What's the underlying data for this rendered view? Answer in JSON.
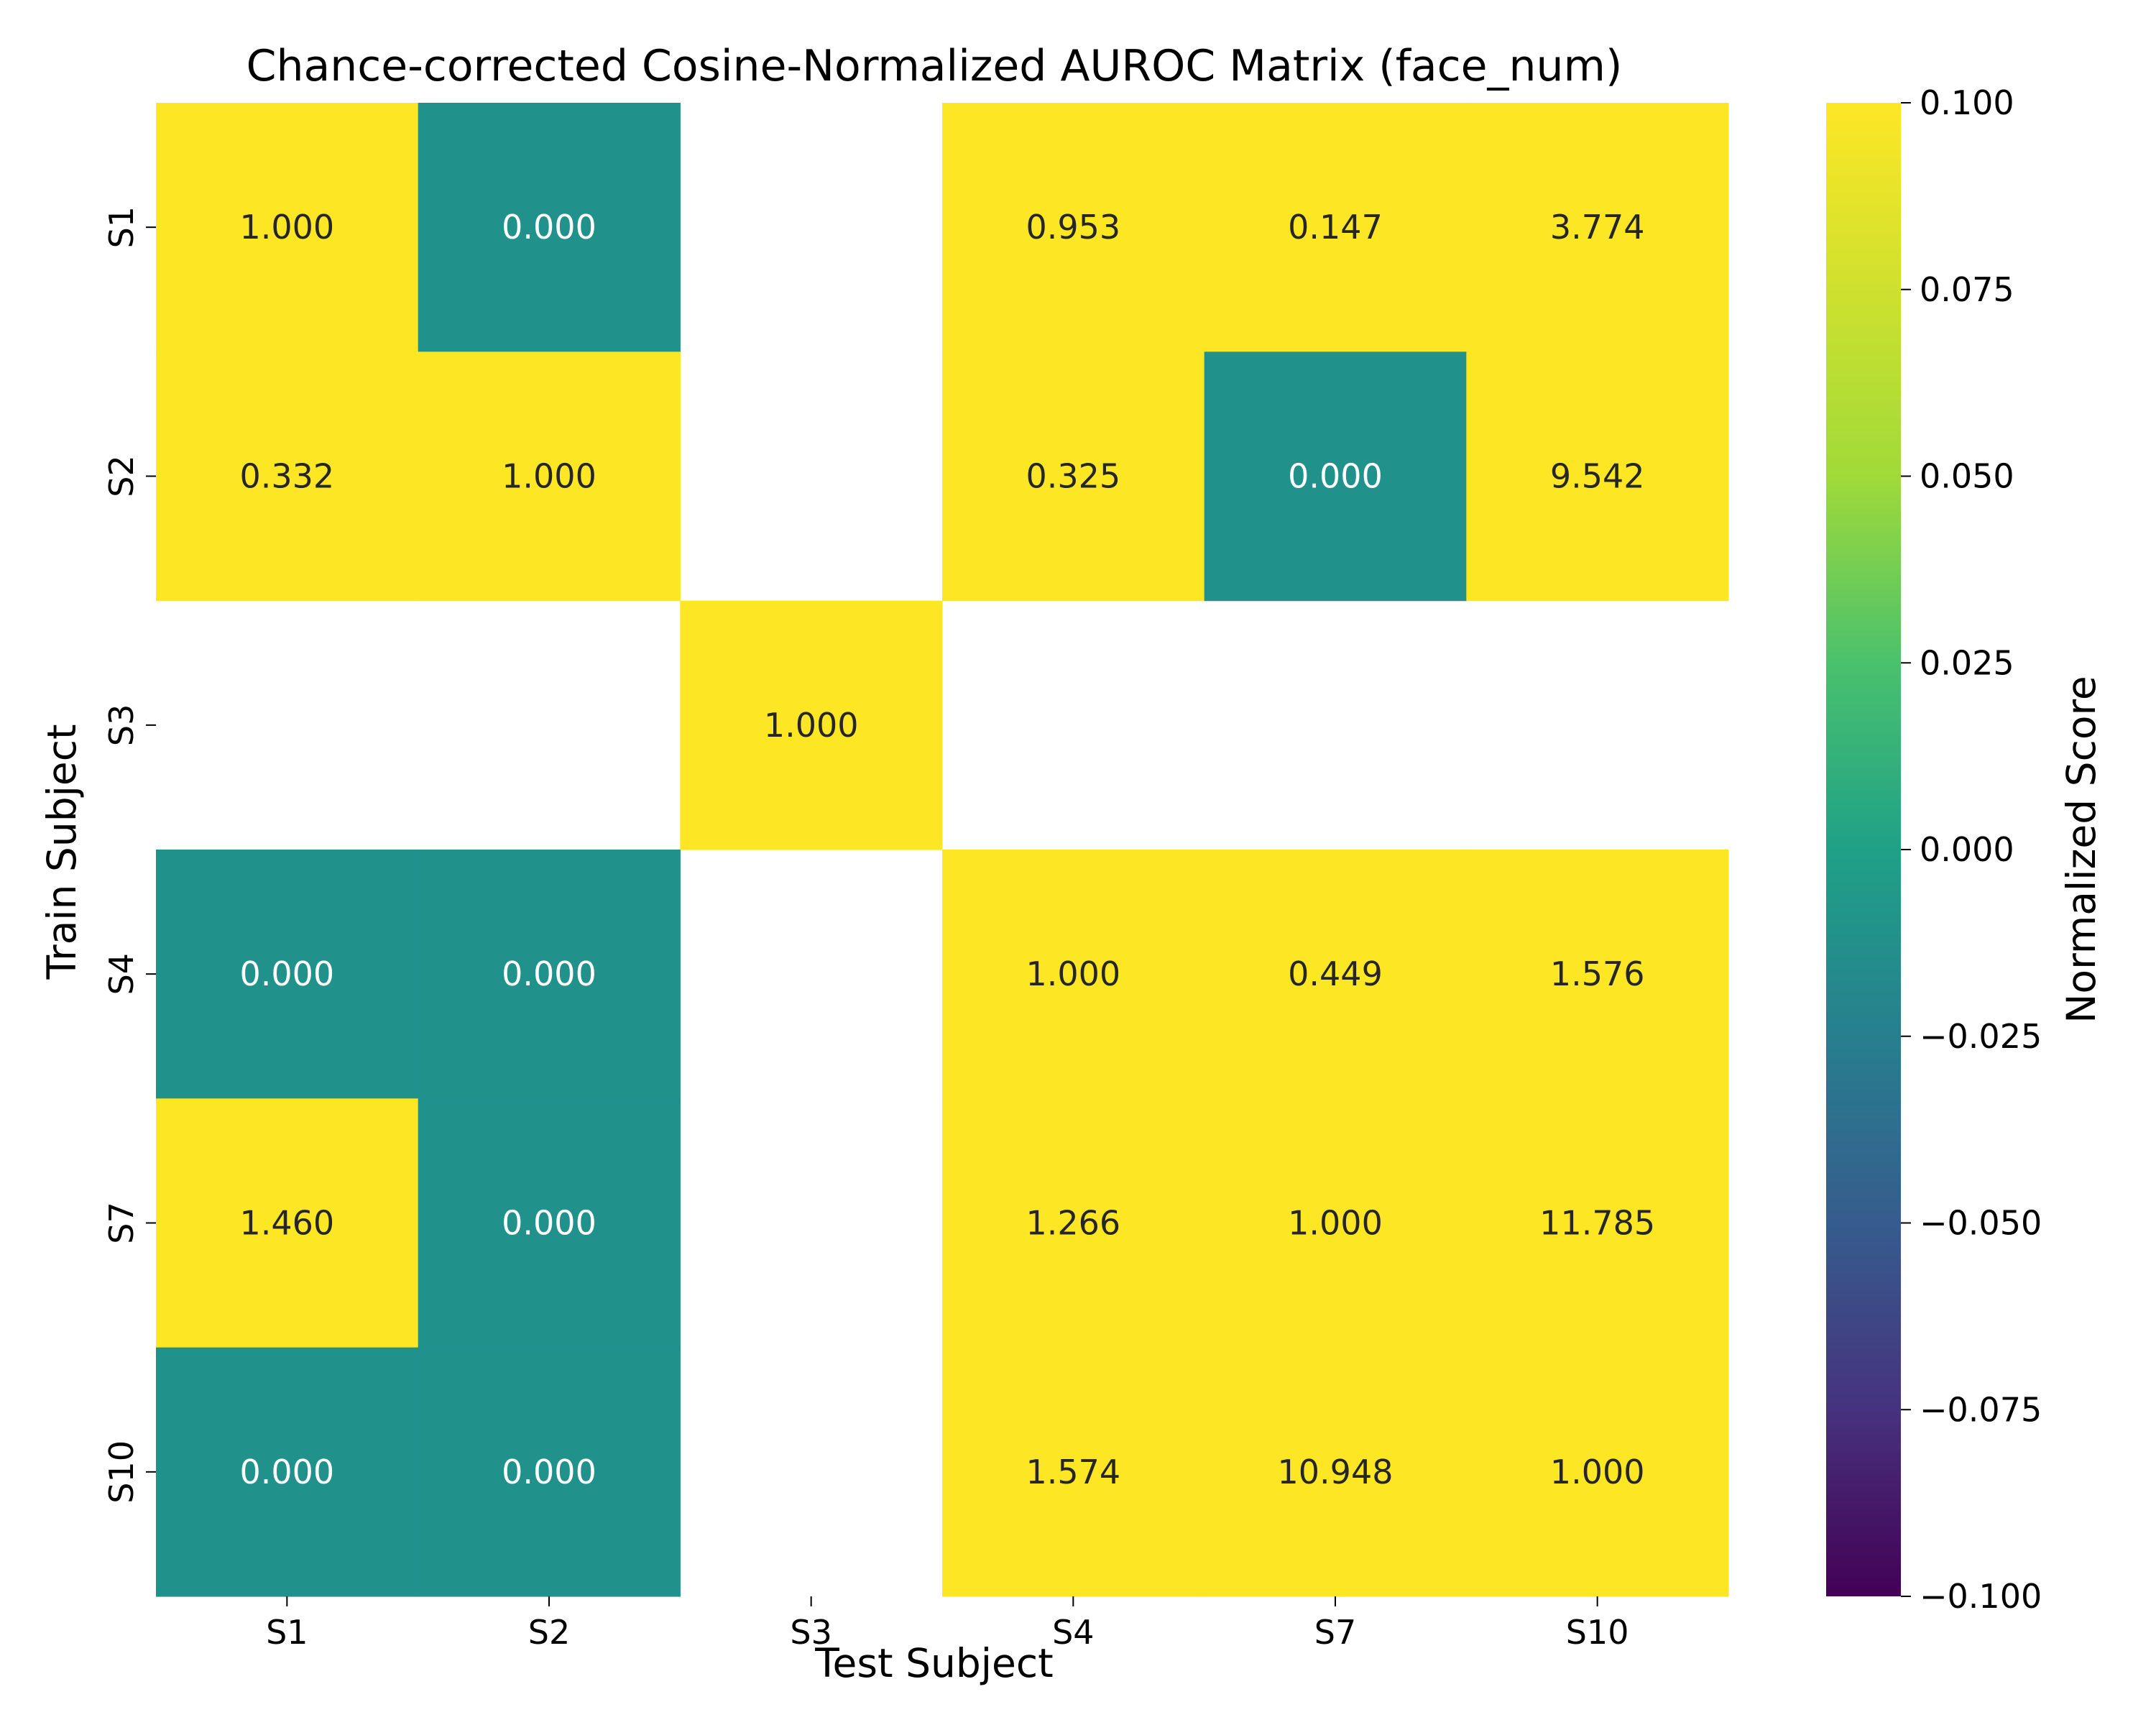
{
  "chart_data": {
    "type": "heatmap",
    "title": "Chance-corrected Cosine-Normalized AUROC Matrix (face_num)",
    "xlabel": "Test Subject",
    "ylabel": "Train Subject",
    "x_categories": [
      "S1",
      "S2",
      "S3",
      "S4",
      "S7",
      "S10"
    ],
    "y_categories": [
      "S1",
      "S2",
      "S3",
      "S4",
      "S7",
      "S10"
    ],
    "values": [
      [
        1.0,
        0.0,
        null,
        0.953,
        0.147,
        3.774
      ],
      [
        0.332,
        1.0,
        null,
        0.325,
        0.0,
        9.542
      ],
      [
        null,
        null,
        1.0,
        null,
        null,
        null
      ],
      [
        0.0,
        0.0,
        null,
        1.0,
        0.449,
        1.576
      ],
      [
        1.46,
        0.0,
        null,
        1.266,
        1.0,
        11.785
      ],
      [
        0.0,
        0.0,
        null,
        1.574,
        10.948,
        1.0
      ]
    ],
    "annotations": [
      [
        "1.000",
        "0.000",
        "",
        "0.953",
        "0.147",
        "3.774"
      ],
      [
        "0.332",
        "1.000",
        "",
        "0.325",
        "0.000",
        "9.542"
      ],
      [
        "",
        "",
        "1.000",
        "",
        "",
        ""
      ],
      [
        "0.000",
        "0.000",
        "",
        "1.000",
        "0.449",
        "1.576"
      ],
      [
        "1.460",
        "0.000",
        "",
        "1.266",
        "1.000",
        "11.785"
      ],
      [
        "0.000",
        "0.000",
        "",
        "1.574",
        "10.948",
        "1.000"
      ]
    ],
    "colormap": "viridis",
    "color_range": [
      -0.1,
      0.1
    ],
    "colorbar": {
      "label": "Normalized Score",
      "ticks": [
        0.1,
        0.075,
        0.05,
        0.025,
        0.0,
        -0.025,
        -0.05,
        -0.075,
        -0.1
      ],
      "tick_labels": [
        "0.100",
        "0.075",
        "0.050",
        "0.025",
        "0.000",
        "−0.025",
        "−0.050",
        "−0.075",
        "−0.100"
      ]
    },
    "colors": {
      "high": "#fde725",
      "mid": "#21918c",
      "low": "#440154",
      "text_on_light": "#262626",
      "text_on_dark": "#ffffff",
      "missing": "#ffffff"
    }
  }
}
